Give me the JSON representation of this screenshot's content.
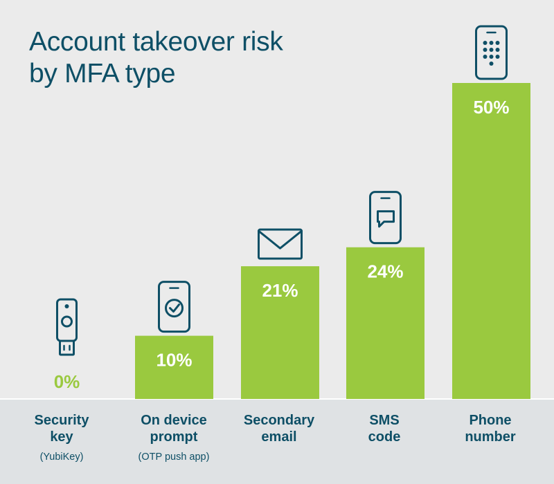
{
  "title": {
    "line1": "Account takeover risk",
    "line2": "by MFA type"
  },
  "colors": {
    "title": "#0e4f66",
    "bar": "#9ac93f",
    "bar_label": "#ffffff",
    "zero_label": "#9ac93f",
    "icon_stroke": "#0e4f66",
    "plot_bg": "#ebebeb",
    "footer_bg": "#dfe2e4",
    "baseline": "#ffffff"
  },
  "categories": [
    {
      "line1": "Security",
      "line2": "key",
      "sub": "(YubiKey)",
      "icon": "security-key-icon"
    },
    {
      "line1": "On device",
      "line2": "prompt",
      "sub": "(OTP push app)",
      "icon": "phone-check-icon"
    },
    {
      "line1": "Secondary",
      "line2": "email",
      "sub": "",
      "icon": "envelope-icon"
    },
    {
      "line1": "SMS",
      "line2": "code",
      "sub": "",
      "icon": "phone-chat-icon"
    },
    {
      "line1": "Phone",
      "line2": "number",
      "sub": "",
      "icon": "phone-keypad-icon"
    }
  ],
  "chart_data": {
    "type": "bar",
    "title": "Account takeover risk by MFA type",
    "categories": [
      "Security key (YubiKey)",
      "On device prompt (OTP push app)",
      "Secondary email",
      "SMS code",
      "Phone number"
    ],
    "values": [
      0,
      10,
      21,
      24,
      50
    ],
    "value_labels": [
      "0%",
      "10%",
      "21%",
      "24%",
      "50%"
    ],
    "unit": "%",
    "ylim": [
      0,
      50
    ],
    "grid": false,
    "legend": "none"
  }
}
